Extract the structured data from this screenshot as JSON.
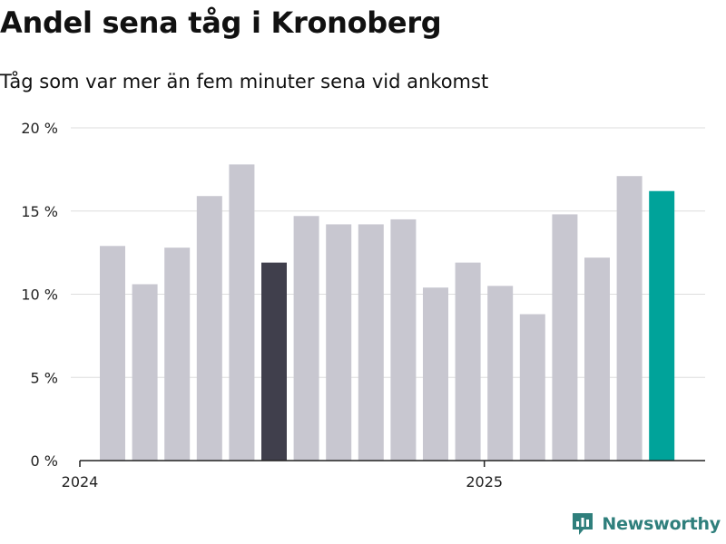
{
  "header": {
    "title": "Andel sena tåg i Kronoberg",
    "subtitle": "Tåg som var mer än fem minuter sena vid ankomst"
  },
  "brand": {
    "name": "Newsworthy",
    "icon": "bar-chart-logo-icon",
    "color": "#2f7f7c"
  },
  "colors": {
    "default_bar": "#c8c7d0",
    "previous_highlight": "#403f4c",
    "latest_highlight": "#00a39a",
    "grid": "#dddddd",
    "axis": "#222222"
  },
  "chart_data": {
    "type": "bar",
    "title": "Andel sena tåg i Kronoberg",
    "subtitle": "Tåg som var mer än fem minuter sena vid ankomst",
    "xlabel": "",
    "ylabel": "",
    "unit": "%",
    "categories": [
      "2024-01",
      "2024-02",
      "2024-03",
      "2024-04",
      "2024-05",
      "2024-06",
      "2024-07",
      "2024-08",
      "2024-09",
      "2024-10",
      "2024-11",
      "2024-12",
      "2025-01",
      "2025-02",
      "2025-03",
      "2025-04",
      "2025-05",
      "2025-06"
    ],
    "values": [
      12.9,
      10.6,
      12.8,
      15.9,
      17.8,
      11.9,
      14.7,
      14.2,
      14.2,
      14.5,
      10.4,
      11.9,
      10.5,
      8.8,
      14.8,
      12.2,
      17.1,
      16.2
    ],
    "highlight": {
      "2024-06": "previous_highlight",
      "2025-06": "latest_highlight"
    },
    "x_ticks": [
      {
        "value": "2024-01",
        "label": "2024"
      },
      {
        "value": "2025-01",
        "label": "2025"
      }
    ],
    "y_ticks": [
      {
        "value": 0,
        "label": "0 %"
      },
      {
        "value": 5,
        "label": "5 %"
      },
      {
        "value": 10,
        "label": "10 %"
      },
      {
        "value": 15,
        "label": "15 %"
      },
      {
        "value": 20,
        "label": "20 %"
      }
    ],
    "ylim": [
      0,
      20
    ],
    "grid": true,
    "legend": "none"
  }
}
